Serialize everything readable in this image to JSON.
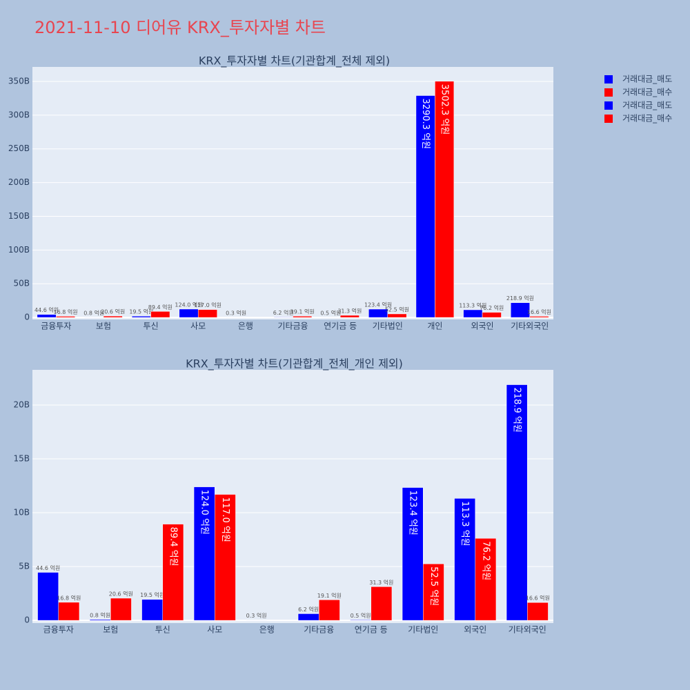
{
  "title": "2021-11-10 디어유 KRX_투자자별 차트",
  "chart_data": [
    {
      "type": "bar",
      "title": "KRX_투자자별 차트(기관합계_전체 제외)",
      "categories": [
        "금융투자",
        "보험",
        "투신",
        "사모",
        "은행",
        "기타금융",
        "연기금 등",
        "기타법인",
        "개인",
        "외국인",
        "기타외국인"
      ],
      "series": [
        {
          "name": "거래대금_매도",
          "color": "#0000ff",
          "values": [
            4460000000,
            80000000,
            1950000000,
            12400000000,
            30000000,
            620000000,
            50000000,
            12340000000,
            329030000000,
            11330000000,
            21890000000
          ],
          "value_labels": [
            "44.6 억원",
            "0.8 억원",
            "19.5 억원",
            "124.0 억원",
            "0.3 억원",
            "6.2 억원",
            "0.5 억원",
            "123.4 억원",
            "3290.3 억원",
            "113.3 억원",
            "218.9 억원"
          ]
        },
        {
          "name": "거래대금_매수",
          "color": "#ff0000",
          "values": [
            1680000000,
            2060000000,
            8940000000,
            11700000000,
            null,
            1910000000,
            3130000000,
            5250000000,
            350230000000,
            7620000000,
            1660000000
          ],
          "value_labels": [
            "16.8 억원",
            "20.6 억원",
            "89.4 억원",
            "117.0 억원",
            null,
            "19.1 억원",
            "31.3 억원",
            "52.5 억원",
            "3502.3 억원",
            "76.2 억원",
            "16.6 억원"
          ]
        }
      ],
      "ylim": [
        -3000000000,
        371500000000
      ],
      "yticks": [
        0,
        {
          "value": 50000000000,
          "label": "50B"
        },
        {
          "value": 100000000000,
          "label": "100B"
        },
        {
          "value": 150000000000,
          "label": "150B"
        },
        {
          "value": 200000000000,
          "label": "200B"
        },
        {
          "value": 250000000000,
          "label": "250B"
        },
        {
          "value": 300000000000,
          "label": "300B"
        },
        {
          "value": 350000000000,
          "label": "350B"
        }
      ],
      "grid": true
    },
    {
      "type": "bar",
      "title": "KRX_투자자별 차트(기관합계_전체_개인 제외)",
      "categories": [
        "금융투자",
        "보험",
        "투신",
        "사모",
        "은행",
        "기타금융",
        "연기금 등",
        "기타법인",
        "외국인",
        "기타외국인"
      ],
      "series": [
        {
          "name": "거래대금_매도",
          "color": "#0000ff",
          "values": [
            4460000000,
            80000000,
            1950000000,
            12400000000,
            30000000,
            620000000,
            50000000,
            12340000000,
            11330000000,
            21890000000
          ],
          "value_labels": [
            "44.6 억원",
            "0.8 억원",
            "19.5 억원",
            "124.0 억원",
            "0.3 억원",
            "6.2 억원",
            "0.5 억원",
            "123.4 억원",
            "113.3 억원",
            "218.9 억원"
          ]
        },
        {
          "name": "거래대금_매수",
          "color": "#ff0000",
          "values": [
            1680000000,
            2060000000,
            8940000000,
            11700000000,
            null,
            1910000000,
            3130000000,
            5250000000,
            7620000000,
            1660000000
          ],
          "value_labels": [
            "16.8 억원",
            "20.6 억원",
            "89.4 억원",
            "117.0 억원",
            null,
            "19.1 억원",
            "31.3 억원",
            "52.5 억원",
            "76.2 억원",
            "16.6 억원"
          ]
        }
      ],
      "ylim": [
        -250000000,
        23270000000
      ],
      "yticks": [
        0,
        {
          "value": 5000000000,
          "label": "5B"
        },
        {
          "value": 10000000000,
          "label": "10B"
        },
        {
          "value": 15000000000,
          "label": "15B"
        },
        {
          "value": 20000000000,
          "label": "20B"
        }
      ],
      "grid": true
    }
  ]
}
